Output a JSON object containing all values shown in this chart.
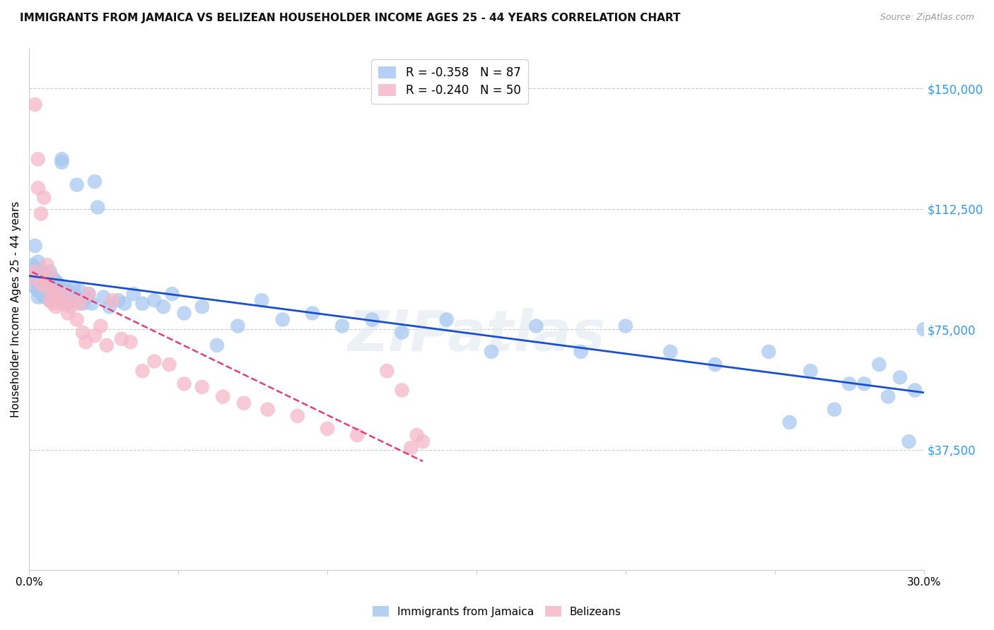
{
  "title": "IMMIGRANTS FROM JAMAICA VS BELIZEAN HOUSEHOLDER INCOME AGES 25 - 44 YEARS CORRELATION CHART",
  "source": "Source: ZipAtlas.com",
  "ylabel": "Householder Income Ages 25 - 44 years",
  "xlim": [
    0.0,
    0.3
  ],
  "ylim": [
    0,
    162500
  ],
  "yticks": [
    37500,
    75000,
    112500,
    150000
  ],
  "ytick_labels": [
    "$37,500",
    "$75,000",
    "$112,500",
    "$150,000"
  ],
  "xticks": [
    0.0,
    0.05,
    0.1,
    0.15,
    0.2,
    0.25,
    0.3
  ],
  "xtick_labels": [
    "0.0%",
    "",
    "",
    "",
    "",
    "",
    "30.0%"
  ],
  "background_color": "#ffffff",
  "grid_color": "#cccccc",
  "watermark": "ZIPatlas",
  "legend_r1": "R = -0.358",
  "legend_n1": "N = 87",
  "legend_r2": "R = -0.240",
  "legend_n2": "N = 50",
  "color_jamaica": "#a8c8f0",
  "color_belize": "#f5b8c8",
  "line_color_jamaica": "#1a4fcc",
  "line_color_belize": "#e0407a",
  "jamaica_x": [
    0.001,
    0.001,
    0.002,
    0.002,
    0.002,
    0.003,
    0.003,
    0.003,
    0.003,
    0.003,
    0.004,
    0.004,
    0.004,
    0.004,
    0.005,
    0.005,
    0.005,
    0.005,
    0.006,
    0.006,
    0.006,
    0.007,
    0.007,
    0.007,
    0.008,
    0.008,
    0.008,
    0.009,
    0.009,
    0.01,
    0.01,
    0.011,
    0.011,
    0.012,
    0.012,
    0.013,
    0.013,
    0.014,
    0.015,
    0.015,
    0.016,
    0.016,
    0.017,
    0.018,
    0.019,
    0.02,
    0.021,
    0.022,
    0.023,
    0.025,
    0.027,
    0.03,
    0.032,
    0.035,
    0.038,
    0.042,
    0.045,
    0.048,
    0.052,
    0.058,
    0.063,
    0.07,
    0.078,
    0.085,
    0.095,
    0.105,
    0.115,
    0.125,
    0.14,
    0.155,
    0.17,
    0.185,
    0.2,
    0.215,
    0.23,
    0.248,
    0.262,
    0.275,
    0.285,
    0.292,
    0.297,
    0.3,
    0.295,
    0.288,
    0.28,
    0.27,
    0.255
  ],
  "jamaica_y": [
    91000,
    95000,
    88000,
    94000,
    101000,
    87000,
    92000,
    96000,
    85000,
    89000,
    91000,
    86000,
    93000,
    88000,
    90000,
    85000,
    92000,
    87000,
    91000,
    86000,
    89000,
    88000,
    84000,
    93000,
    87000,
    91000,
    84000,
    90000,
    86000,
    89000,
    85000,
    128000,
    127000,
    88000,
    84000,
    87000,
    83000,
    86000,
    84000,
    88000,
    120000,
    85000,
    87000,
    83000,
    85000,
    86000,
    83000,
    121000,
    113000,
    85000,
    82000,
    84000,
    83000,
    86000,
    83000,
    84000,
    82000,
    86000,
    80000,
    82000,
    70000,
    76000,
    84000,
    78000,
    80000,
    76000,
    78000,
    74000,
    78000,
    68000,
    76000,
    68000,
    76000,
    68000,
    64000,
    68000,
    62000,
    58000,
    64000,
    60000,
    56000,
    75000,
    40000,
    54000,
    58000,
    50000,
    46000
  ],
  "belize_x": [
    0.001,
    0.002,
    0.002,
    0.003,
    0.003,
    0.004,
    0.004,
    0.005,
    0.005,
    0.006,
    0.006,
    0.007,
    0.007,
    0.008,
    0.008,
    0.009,
    0.009,
    0.01,
    0.011,
    0.012,
    0.013,
    0.014,
    0.015,
    0.016,
    0.017,
    0.018,
    0.019,
    0.02,
    0.022,
    0.024,
    0.026,
    0.028,
    0.031,
    0.034,
    0.038,
    0.042,
    0.047,
    0.052,
    0.058,
    0.065,
    0.072,
    0.08,
    0.09,
    0.1,
    0.11,
    0.12,
    0.125,
    0.128,
    0.13,
    0.132
  ],
  "belize_y": [
    91000,
    145000,
    93000,
    128000,
    119000,
    111000,
    89000,
    116000,
    91000,
    95000,
    88000,
    84000,
    92000,
    87000,
    83000,
    86000,
    82000,
    84000,
    83000,
    86000,
    80000,
    82000,
    84000,
    78000,
    83000,
    74000,
    71000,
    86000,
    73000,
    76000,
    70000,
    84000,
    72000,
    71000,
    62000,
    65000,
    64000,
    58000,
    57000,
    54000,
    52000,
    50000,
    48000,
    44000,
    42000,
    62000,
    56000,
    38000,
    42000,
    40000
  ]
}
